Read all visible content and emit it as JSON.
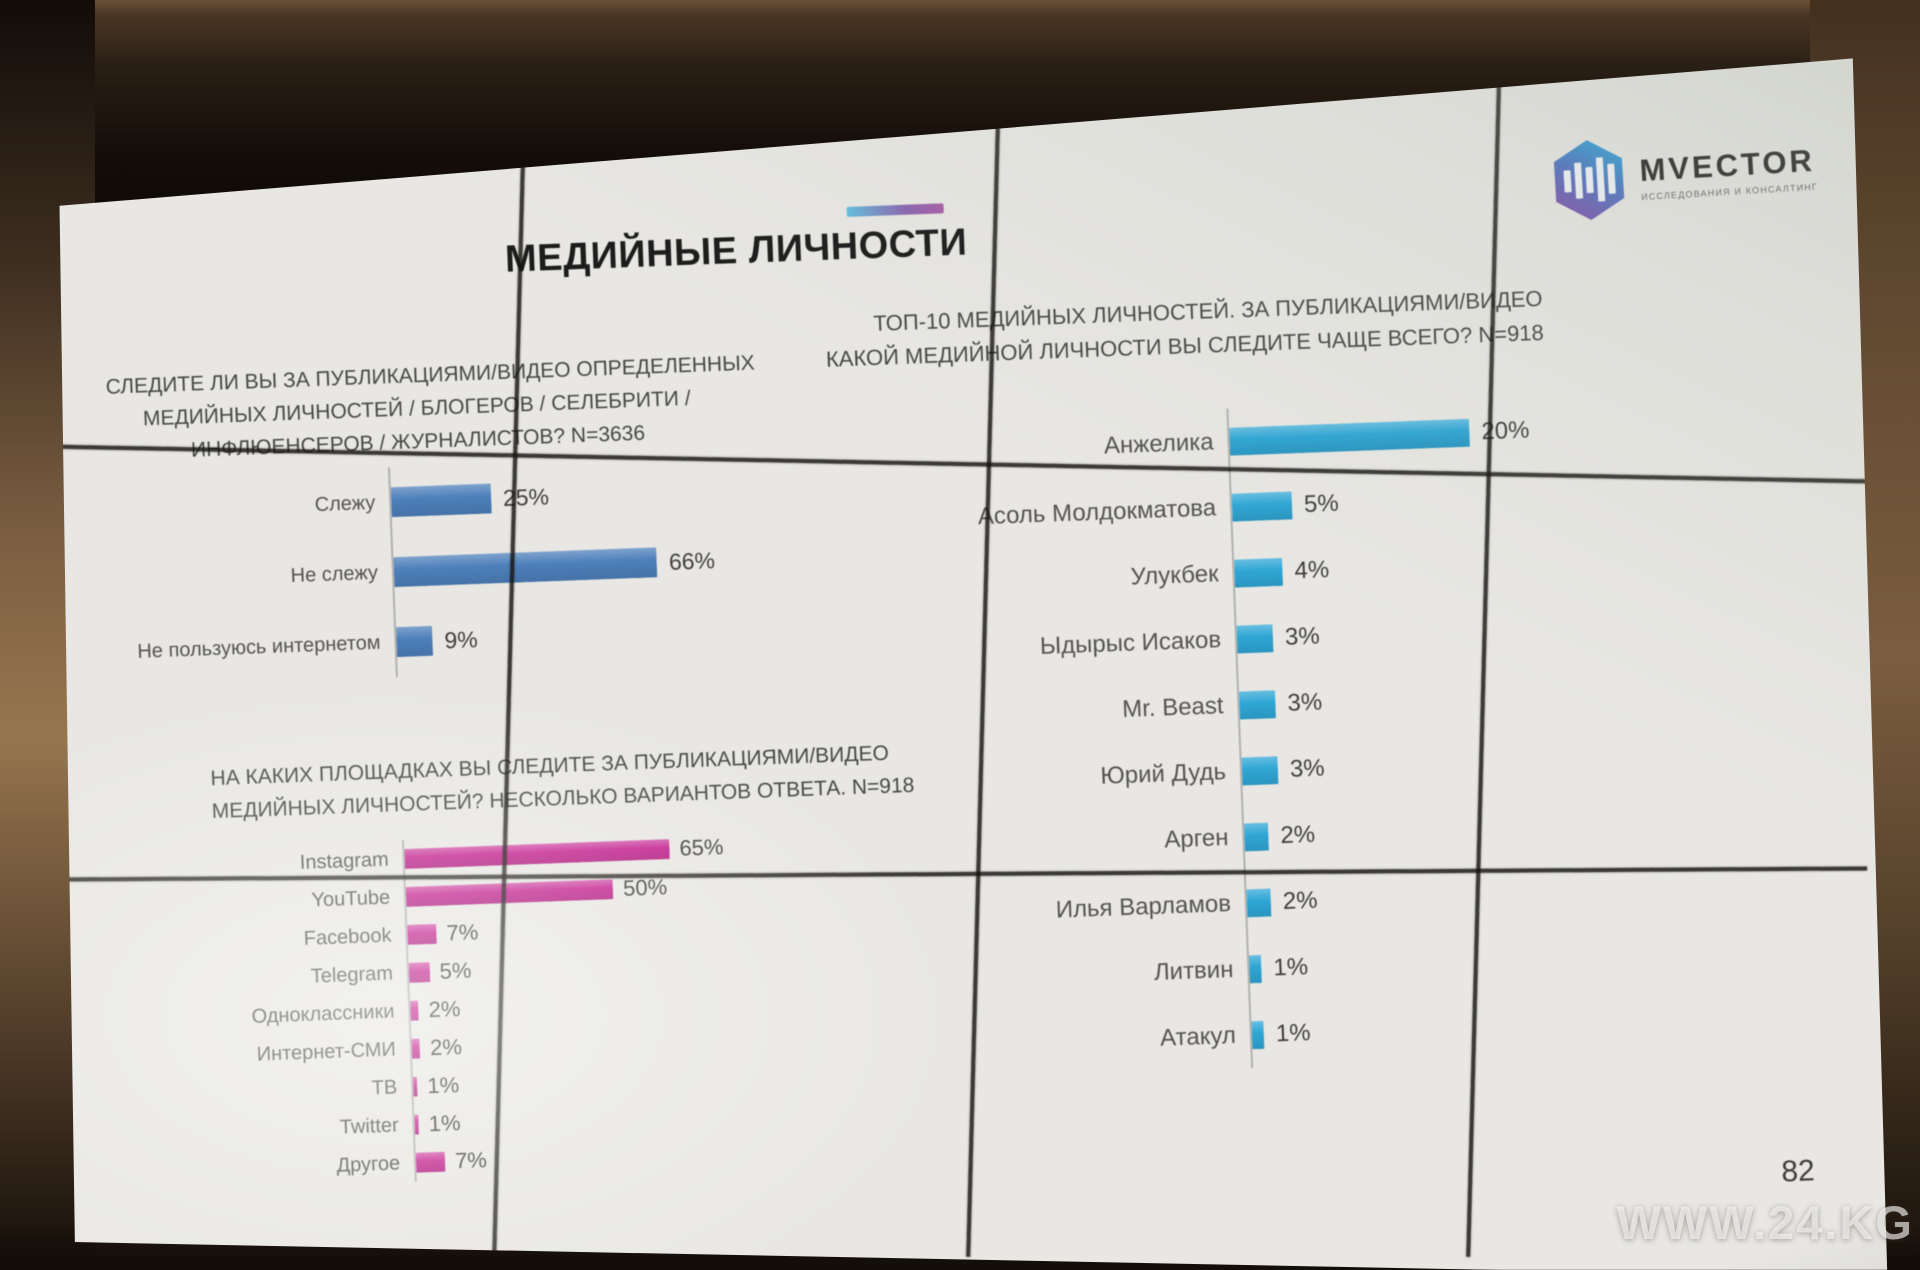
{
  "slide": {
    "title": "МЕДИЙНЫЕ ЛИЧНОСТИ",
    "page_number": "82"
  },
  "logo": {
    "brand": "MVECTOR",
    "tagline": "ИССЛЕДОВАНИЯ И КОНСАЛТИНГ"
  },
  "watermark": "WWW.24.KG",
  "colors": {
    "chart1_bar": "#4d7fba",
    "chart2_bar": "#c4218f",
    "chart3_bar": "#2fa6d5",
    "accent_gradient_start": "#62bede",
    "accent_gradient_end": "#a85fa8"
  },
  "chart_data": [
    {
      "type": "bar",
      "orientation": "horizontal",
      "title": "СЛЕДИТЕ ЛИ ВЫ ЗА ПУБЛИКАЦИЯМИ/ВИДЕО ОПРЕДЕЛЕННЫХ МЕДИЙНЫХ ЛИЧНОСТЕЙ / БЛОГЕРОВ / СЕЛЕБРИТИ / ИНФЛЮЕНСЕРОВ / ЖУРНАЛИСТОВ? N=3636",
      "title_lines": [
        "СЛЕДИТЕ ЛИ ВЫ ЗА ПУБЛИКАЦИЯМИ/ВИДЕО ОПРЕДЕЛЕННЫХ",
        "МЕДИЙНЫХ ЛИЧНОСТЕЙ / БЛОГЕРОВ / СЕЛЕБРИТИ /",
        "ИНФЛЮЕНСЕРОВ / ЖУРНАЛИСТОВ? N=3636"
      ],
      "sample_size": "N=3636",
      "categories": [
        "Слежу",
        "Не слежу",
        "Не пользуюсь интернетом"
      ],
      "values": [
        25,
        66,
        9
      ],
      "unit": "%",
      "axis_max": 85,
      "bar_color": "#4d7fba"
    },
    {
      "type": "bar",
      "orientation": "horizontal",
      "title": "НА КАКИХ ПЛОЩАДКАХ ВЫ СЛЕДИТЕ ЗА ПУБЛИКАЦИЯМИ/ВИДЕО МЕДИЙНЫХ ЛИЧНОСТЕЙ? НЕСКОЛЬКО ВАРИАНТОВ ОТВЕТА. N=918",
      "title_lines": [
        "НА КАКИХ ПЛОЩАДКАХ ВЫ СЛЕДИТЕ ЗА ПУБЛИКАЦИЯМИ/ВИДЕО",
        "МЕДИЙНЫХ ЛИЧНОСТЕЙ? НЕСКОЛЬКО ВАРИАНТОВ ОТВЕТА. N=918"
      ],
      "sample_size": "N=918",
      "categories": [
        "Instagram",
        "YouTube",
        "Facebook",
        "Telegram",
        "Одноклассники",
        "Интернет-СМИ",
        "ТВ",
        "Twitter",
        "Другое"
      ],
      "values": [
        65,
        50,
        7,
        5,
        2,
        2,
        1,
        1,
        7
      ],
      "unit": "%",
      "axis_max": 77,
      "bar_color": "#c4218f"
    },
    {
      "type": "bar",
      "orientation": "horizontal",
      "title": "ТОП-10 МЕДИЙНЫХ ЛИЧНОСТЕЙ. ЗА ПУБЛИКАЦИЯМИ/ВИДЕО КАКОЙ МЕДИЙНОЙ ЛИЧНОСТИ ВЫ СЛЕДИТЕ ЧАЩЕ ВСЕГО? N=918",
      "title_lines": [
        "ТОП-10 МЕДИЙНЫХ ЛИЧНОСТЕЙ. ЗА ПУБЛИКАЦИЯМИ/ВИДЕО",
        "КАКОЙ МЕДИЙНОЙ ЛИЧНОСТИ ВЫ СЛЕДИТЕ ЧАЩЕ ВСЕГО? N=918"
      ],
      "sample_size": "N=918",
      "categories": [
        "Анжелика",
        "Асоль Молдокматова",
        "Улукбек",
        "Ыдырыс Исаков",
        "Mr. Beast",
        "Юрий Дудь",
        "Арген",
        "Илья Варламов",
        "Литвин",
        "Атакул"
      ],
      "values": [
        20,
        5,
        4,
        3,
        3,
        3,
        2,
        2,
        1,
        1
      ],
      "unit": "%",
      "axis_max": 27,
      "bar_color": "#2fa6d5"
    }
  ]
}
